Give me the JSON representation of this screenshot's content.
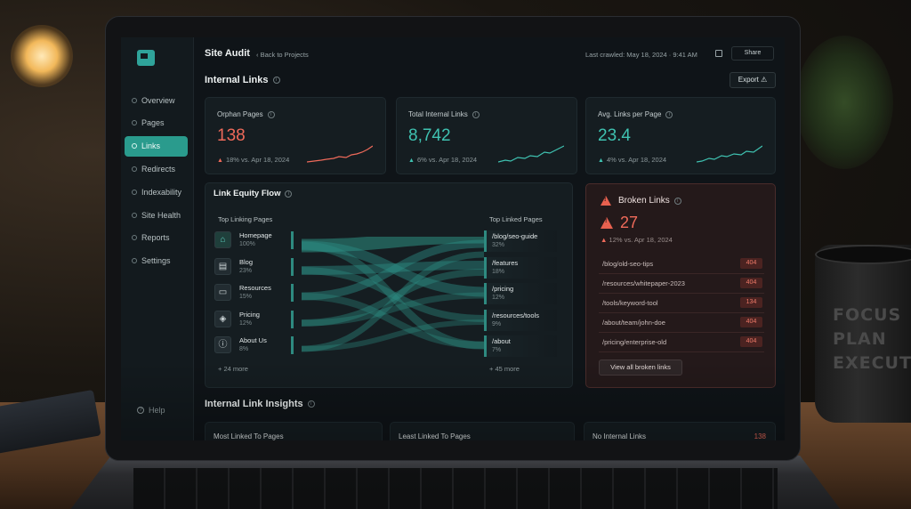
{
  "header": {
    "title": "Site Audit",
    "back_link": "‹ Back to Projects",
    "last_crawled": "Last crawled: May 18, 2024 · 9:41 AM",
    "share_label": "Share"
  },
  "sidebar": {
    "items": [
      {
        "label": "Overview",
        "active": false
      },
      {
        "label": "Pages",
        "active": false
      },
      {
        "label": "Links",
        "active": true
      },
      {
        "label": "Redirects",
        "active": false
      },
      {
        "label": "Indexability",
        "active": false
      },
      {
        "label": "Site Health",
        "active": false
      },
      {
        "label": "Reports",
        "active": false
      },
      {
        "label": "Settings",
        "active": false
      }
    ],
    "help_label": "Help"
  },
  "internal_links": {
    "title": "Internal Links",
    "export_label": "Export",
    "metrics": [
      {
        "label": "Orphan Pages",
        "value": "138",
        "delta": "18% vs. Apr 18, 2024",
        "color": "#ef6a5a"
      },
      {
        "label": "Total Internal Links",
        "value": "8,742",
        "delta": "6% vs. Apr 18, 2024",
        "color": "#3fc2b1"
      },
      {
        "label": "Avg. Links per Page",
        "value": "23.4",
        "delta": "4% vs. Apr 18, 2024",
        "color": "#3fc2b1"
      }
    ]
  },
  "flow": {
    "title": "Link Equity Flow",
    "left_heading": "Top Linking Pages",
    "right_heading": "Top Linked Pages",
    "sources": [
      {
        "name": "Homepage",
        "pct": "100%",
        "icon": "home-icon",
        "glyph": "⌂"
      },
      {
        "name": "Blog",
        "pct": "23%",
        "icon": "document-icon",
        "glyph": "▤"
      },
      {
        "name": "Resources",
        "pct": "15%",
        "icon": "folder-icon",
        "glyph": "▭"
      },
      {
        "name": "Pricing",
        "pct": "12%",
        "icon": "tag-icon",
        "glyph": "◈"
      },
      {
        "name": "About Us",
        "pct": "8%",
        "icon": "info-icon",
        "glyph": "ⓘ"
      }
    ],
    "targets": [
      {
        "name": "/blog/seo-guide",
        "pct": "32%"
      },
      {
        "name": "/features",
        "pct": "18%"
      },
      {
        "name": "/pricing",
        "pct": "12%"
      },
      {
        "name": "/resources/tools",
        "pct": "9%"
      },
      {
        "name": "/about",
        "pct": "7%"
      }
    ],
    "more_left": "+ 24 more",
    "more_right": "+ 45 more"
  },
  "broken": {
    "title": "Broken Links",
    "count": "27",
    "delta": "12% vs. Apr 18, 2024",
    "rows": [
      {
        "url": "/blog/old-seo-tips",
        "code": "404"
      },
      {
        "url": "/resources/whitepaper-2023",
        "code": "404"
      },
      {
        "url": "/tools/keyword-tool",
        "code": "134"
      },
      {
        "url": "/about/team/john-doe",
        "code": "404"
      },
      {
        "url": "/pricing/enterprise-old",
        "code": "404"
      }
    ],
    "view_all": "View all broken links"
  },
  "insights": {
    "title": "Internal Link Insights",
    "cards": [
      {
        "label": "Most Linked To Pages",
        "value": ""
      },
      {
        "label": "Least Linked To Pages",
        "value": ""
      },
      {
        "label": "No Internal Links",
        "value": "138"
      }
    ]
  },
  "mug_text": [
    "FOCUS",
    "PLAN",
    "EXECUTE"
  ]
}
